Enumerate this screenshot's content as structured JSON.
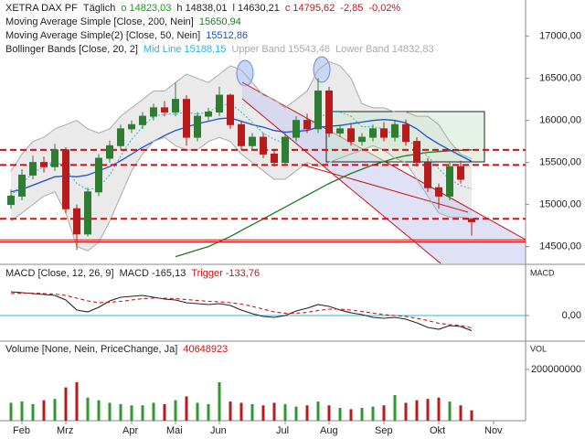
{
  "chart_data": [
    {
      "type": "candlestick",
      "title": "XETRA DAX PF",
      "interval": "Täglich",
      "quote": [
        {
          "text": "o 14823,03",
          "color": "#1a9a1a"
        },
        {
          "text": "h 14838,01",
          "color": "#222222"
        },
        {
          "text": "l 14630,21",
          "color": "#222222"
        },
        {
          "text": "c 14795,62",
          "color": "#d01010"
        },
        {
          "text": "-2,85",
          "color": "#d01010"
        },
        {
          "text": "-0,02%",
          "color": "#d01010"
        }
      ],
      "open": [
        15000,
        15100,
        15350,
        15500,
        15450,
        15650,
        14950,
        14650,
        15150,
        15550,
        15700,
        15900,
        15950,
        16050,
        16150,
        16100,
        16250,
        15800,
        16050,
        16100,
        16300,
        15950,
        15700,
        15800,
        15600,
        15500,
        15800,
        16000,
        15900,
        16350,
        15850,
        15900,
        15750,
        15800,
        15900,
        15800,
        15950,
        15750,
        15500,
        15200,
        15100,
        15450,
        14823.03,
        null,
        null
      ],
      "high": [
        15180,
        15420,
        15580,
        15570,
        15720,
        15680,
        15000,
        15200,
        15600,
        15760,
        15950,
        16000,
        16100,
        16200,
        16230,
        16450,
        16300,
        16100,
        16150,
        16400,
        16320,
        16000,
        15850,
        15850,
        15650,
        15850,
        16050,
        16080,
        16500,
        16400,
        15950,
        15950,
        15850,
        15950,
        15980,
        16000,
        16010,
        15800,
        15550,
        15250,
        15500,
        15520,
        14838.01,
        null,
        null
      ],
      "low": [
        14950,
        15050,
        15300,
        15380,
        15400,
        14900,
        14460,
        14620,
        15100,
        15500,
        15650,
        15850,
        15900,
        16000,
        16050,
        16050,
        15700,
        15750,
        16000,
        16050,
        15900,
        15650,
        15650,
        15550,
        15450,
        15480,
        15750,
        15850,
        15850,
        15800,
        15800,
        15700,
        15700,
        15750,
        15750,
        15750,
        15700,
        15450,
        15150,
        14950,
        15050,
        15250,
        14630.21,
        null,
        null
      ],
      "close": [
        15100,
        15350,
        15500,
        15450,
        15650,
        14950,
        14650,
        15150,
        15550,
        15700,
        15900,
        15950,
        16050,
        16150,
        16100,
        16250,
        15800,
        16050,
        16100,
        16300,
        15950,
        15700,
        15800,
        15600,
        15500,
        15800,
        16000,
        15900,
        16350,
        15850,
        15900,
        15750,
        15800,
        15900,
        15800,
        15950,
        15750,
        15500,
        15200,
        15100,
        15450,
        15300,
        14795.62,
        null,
        null
      ],
      "up_color": "#2e7d32",
      "down_color": "#b71c1c",
      "series": [
        {
          "name": "Moving Average Simple  [Close, 200, Nein]",
          "last_label": "15650,94",
          "color": "#1f7a1f",
          "style": "solid",
          "values": [
            null,
            null,
            null,
            null,
            null,
            null,
            null,
            null,
            null,
            null,
            null,
            null,
            null,
            null,
            null,
            14380,
            14420,
            14460,
            14500,
            14560,
            14620,
            14690,
            14760,
            14830,
            14900,
            14970,
            15040,
            15110,
            15180,
            15250,
            15310,
            15370,
            15420,
            15470,
            15510,
            15550,
            15580,
            15600,
            15620,
            15630,
            15640,
            15645,
            15650.94,
            null,
            null
          ]
        },
        {
          "name": "Moving Average Simple(2)  [Close, 50, Nein]",
          "last_label": "15512,86",
          "color": "#1f4fd0",
          "style": "solid",
          "values": [
            15150,
            15180,
            15230,
            15280,
            15330,
            15340,
            15330,
            15350,
            15400,
            15450,
            15520,
            15600,
            15680,
            15750,
            15820,
            15880,
            15920,
            15960,
            15990,
            16020,
            16030,
            15990,
            15950,
            15920,
            15880,
            15860,
            15870,
            15880,
            15920,
            15930,
            15940,
            15960,
            15980,
            16000,
            16010,
            16000,
            15970,
            15900,
            15800,
            15720,
            15650,
            15580,
            15512.86,
            null,
            null
          ]
        },
        {
          "name": "Mid Line",
          "last_label": "15188,15",
          "color": "#29b6e0",
          "style": "dotted",
          "values": [
            15100,
            15250,
            15375,
            15450,
            15525,
            15425,
            15250,
            15175,
            15200,
            15350,
            15575,
            15775,
            15925,
            16050,
            16075,
            16075,
            16100,
            16075,
            16100,
            16175,
            16200,
            16100,
            15975,
            15850,
            15775,
            15725,
            15825,
            15925,
            16025,
            16100,
            16100,
            16050,
            15925,
            15925,
            15900,
            15825,
            15800,
            15675,
            15575,
            15425,
            15300,
            15225,
            15188.15,
            null,
            null
          ]
        },
        {
          "name": "Upper Band",
          "last_label": "15543,46",
          "color": "#aaaaaa",
          "style": "solid",
          "values": [
            15400,
            15600,
            15750,
            15800,
            15900,
            15950,
            16000,
            15900,
            15850,
            15900,
            16050,
            16150,
            16250,
            16350,
            16350,
            16450,
            16550,
            16500,
            16450,
            16550,
            16650,
            16600,
            16450,
            16300,
            16250,
            16150,
            16250,
            16350,
            16600,
            16700,
            16650,
            16500,
            16200,
            16150,
            16150,
            16100,
            16100,
            16050,
            16050,
            15950,
            15750,
            15600,
            15543.46,
            null,
            null
          ]
        },
        {
          "name": "Lower Band",
          "last_label": "14832,83",
          "color": "#aaaaaa",
          "style": "solid",
          "values": [
            14800,
            14900,
            15000,
            15100,
            15150,
            14900,
            14500,
            14450,
            14550,
            14800,
            15100,
            15400,
            15600,
            15750,
            15800,
            15700,
            15650,
            15650,
            15750,
            15800,
            15750,
            15600,
            15500,
            15400,
            15300,
            15300,
            15400,
            15500,
            15450,
            15500,
            15550,
            15600,
            15650,
            15700,
            15650,
            15550,
            15500,
            15300,
            15100,
            14900,
            14850,
            14850,
            14832.83,
            null,
            null
          ]
        }
      ],
      "bollinger_title": "Bollinger Bands  [Close, 20, 2]",
      "band_fill": "#dcdcdc",
      "hlines": [
        15650,
        15470,
        14830
      ],
      "hline_color": "#d01010",
      "support_lines": [
        14580,
        14555
      ],
      "ylim": [
        14300,
        17410
      ],
      "yticks": [
        {
          "value": 14500,
          "label": "14500,00"
        },
        {
          "value": 15000,
          "label": "15000,00"
        },
        {
          "value": 15500,
          "label": "15500,00"
        },
        {
          "value": 16000,
          "label": "16000,00"
        },
        {
          "value": 16500,
          "label": "16500,00"
        },
        {
          "value": 17000,
          "label": "17000,00"
        }
      ]
    },
    {
      "type": "line",
      "title": "MACD  [Close, 12, 26, 9]",
      "axis_label": "MACD",
      "series": [
        {
          "name": "MACD",
          "last_label": "-165,13",
          "color": "#222222",
          "style": "solid",
          "values": [
            260,
            250,
            240,
            230,
            220,
            170,
            60,
            40,
            90,
            160,
            200,
            210,
            220,
            200,
            180,
            170,
            140,
            130,
            120,
            130,
            110,
            60,
            20,
            -10,
            -20,
            0,
            50,
            80,
            120,
            100,
            60,
            30,
            10,
            -20,
            -30,
            -20,
            -40,
            -80,
            -130,
            -150,
            -110,
            -120,
            -165.13,
            null,
            null
          ]
        },
        {
          "name": "Trigger",
          "last_label": "-133,76",
          "color": "#d01010",
          "style": "dashed",
          "values": [
            240,
            245,
            245,
            240,
            235,
            220,
            190,
            160,
            140,
            145,
            155,
            170,
            185,
            190,
            190,
            185,
            175,
            165,
            155,
            150,
            140,
            125,
            100,
            70,
            40,
            25,
            25,
            35,
            55,
            70,
            70,
            60,
            45,
            25,
            10,
            0,
            -10,
            -30,
            -55,
            -85,
            -100,
            -110,
            -133.76,
            null,
            null
          ]
        }
      ],
      "zero_color": "#29b6e0",
      "ylim": [
        -270,
        530
      ],
      "yticks": [
        {
          "value": 0,
          "label": "0,00"
        }
      ]
    },
    {
      "type": "bar",
      "title": "Volume  [None, Nein, PriceChange, Ja]",
      "last_label": "40648923",
      "axis_label": "VOL",
      "categories": [
        null,
        "Feb",
        null,
        null,
        null,
        "Mrz",
        null,
        null,
        null,
        null,
        null,
        "Apr",
        null,
        null,
        null,
        "Mai",
        null,
        null,
        null,
        "Jun",
        null,
        null,
        null,
        null,
        null,
        "Jul",
        null,
        null,
        null,
        "Aug",
        null,
        null,
        null,
        null,
        "Sep",
        null,
        null,
        null,
        null,
        "Okt",
        null,
        null,
        null,
        null,
        "Nov"
      ],
      "values": [
        70000000,
        75000000,
        65000000,
        80000000,
        85000000,
        130000000,
        150000000,
        90000000,
        80000000,
        70000000,
        65000000,
        60000000,
        60000000,
        70000000,
        65000000,
        80000000,
        95000000,
        70000000,
        65000000,
        150000000,
        75000000,
        70000000,
        65000000,
        60000000,
        70000000,
        65000000,
        55000000,
        60000000,
        75000000,
        60000000,
        50000000,
        45000000,
        50000000,
        55000000,
        60000000,
        100000000,
        70000000,
        80000000,
        85000000,
        90000000,
        75000000,
        60000000,
        40648923,
        null,
        null
      ],
      "up_color": "#2e9a2e",
      "down_color": "#c01818",
      "ylim": [
        0,
        300000000
      ],
      "yticks": [
        200000000
      ]
    }
  ]
}
